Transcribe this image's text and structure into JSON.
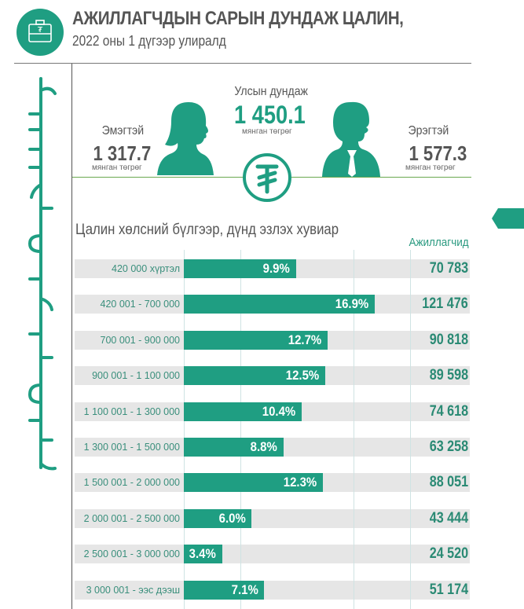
{
  "header": {
    "title": "АЖИЛЛАГЧДЫН САРЫН ДУНДАЖ ЦАЛИН,",
    "subtitle": "2022 оны 1 дүгээр улиралд",
    "icon": "briefcase-tugrik-icon"
  },
  "summary": {
    "national": {
      "label": "Улсын дундаж",
      "value": "1 450.1",
      "unit": "мянган төгрөг"
    },
    "female": {
      "label": "Эмэгтэй",
      "value": "1 317.7",
      "unit": "мянган төгрөг"
    },
    "male": {
      "label": "Эрэгтэй",
      "value": "1 577.3",
      "unit": "мянган төгрөг"
    },
    "center_icon": "tugrik-icon"
  },
  "colors": {
    "accent": "#1f9e82",
    "band": "#e6e6e6",
    "text": "#555555"
  },
  "chart_data": {
    "type": "bar",
    "orientation": "horizontal",
    "title": "Цалин хөлсний бүлгээр, дүнд эзлэх хувиар",
    "count_header": "Ажиллагчид",
    "categories": [
      "420 000 хүртэл",
      "420 001 - 700 000",
      "700 001 - 900 000",
      "900 001 - 1 100 000",
      "1 100 001 - 1 300 000",
      "1 300 001 - 1 500 000",
      "1 500 001 - 2 000 000",
      "2 000 001 - 2 500 000",
      "2 500 001 - 3 000 000",
      "3 000 001 - ээс дээш"
    ],
    "values": [
      9.9,
      16.9,
      12.7,
      12.5,
      10.4,
      8.8,
      12.3,
      6.0,
      3.4,
      7.1
    ],
    "value_labels": [
      "9.9%",
      "16.9%",
      "12.7%",
      "12.5%",
      "10.4%",
      "8.8%",
      "12.3%",
      "6.0%",
      "3.4%",
      "7.1%"
    ],
    "counts": [
      "70 783",
      "121 476",
      "90 818",
      "89 598",
      "74 618",
      "63 258",
      "88 051",
      "43 444",
      "24 520",
      "51 174"
    ],
    "xlim": [
      0,
      20
    ],
    "grid": true,
    "gridlines": [
      0,
      5,
      15,
      20
    ]
  }
}
